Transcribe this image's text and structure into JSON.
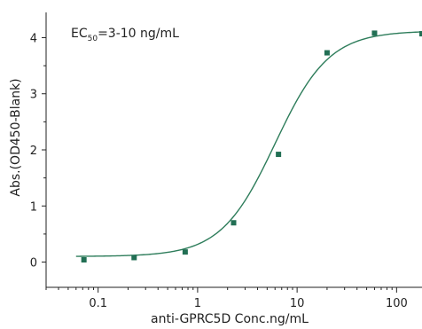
{
  "chart_data": {
    "type": "scatter",
    "x_scale": "log",
    "xlabel": "anti-GPRC5D Conc.ng/mL",
    "ylabel": "Abs.(OD450-Blank)",
    "xlim": [
      0.03,
      180
    ],
    "ylim": [
      -0.45,
      4.45
    ],
    "x_ticks": [
      {
        "value": 0.1,
        "label": "0.1"
      },
      {
        "value": 1,
        "label": "1"
      },
      {
        "value": 10,
        "label": "10"
      },
      {
        "value": 100,
        "label": "100"
      }
    ],
    "y_ticks": [
      {
        "value": 0,
        "label": "0"
      },
      {
        "value": 1,
        "label": "1"
      },
      {
        "value": 2,
        "label": "2"
      },
      {
        "value": 3,
        "label": "3"
      },
      {
        "value": 4,
        "label": "4"
      }
    ],
    "annotation": {
      "main": "EC",
      "sub": "50",
      "rest": "=3-10 ng/mL"
    },
    "points": [
      {
        "x": 0.072,
        "y": 0.04
      },
      {
        "x": 0.23,
        "y": 0.08
      },
      {
        "x": 0.75,
        "y": 0.18
      },
      {
        "x": 2.3,
        "y": 0.7
      },
      {
        "x": 6.5,
        "y": 1.92
      },
      {
        "x": 20,
        "y": 3.73
      },
      {
        "x": 60,
        "y": 4.08
      },
      {
        "x": 180,
        "y": 4.07
      }
    ],
    "fit": {
      "bottom": 0.1,
      "top": 4.12,
      "ec50": 6.0,
      "hill": 1.6
    },
    "colors": {
      "marker": "#226f54",
      "curve": "#2e7d5b",
      "axis": "#222222"
    }
  }
}
